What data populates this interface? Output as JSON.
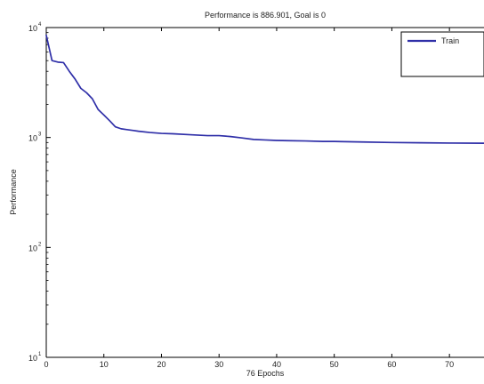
{
  "chart_data": {
    "type": "line",
    "title": "Performance is 886.901, Goal is 0",
    "xlabel": "76 Epochs",
    "ylabel": "Performance",
    "yscale": "log",
    "xlim": [
      0,
      76
    ],
    "ylim": [
      10,
      10000
    ],
    "x_ticks": [
      {
        "value": 0,
        "label": "0"
      },
      {
        "value": 10,
        "label": "10"
      },
      {
        "value": 20,
        "label": "20"
      },
      {
        "value": 30,
        "label": "30"
      },
      {
        "value": 40,
        "label": "40"
      },
      {
        "value": 50,
        "label": "50"
      },
      {
        "value": 60,
        "label": "60"
      },
      {
        "value": 70,
        "label": "70"
      }
    ],
    "y_ticks": [
      {
        "value": 10,
        "base": "10",
        "exponent": "1"
      },
      {
        "value": 100,
        "base": "10",
        "exponent": "2"
      },
      {
        "value": 1000,
        "base": "10",
        "exponent": "3"
      },
      {
        "value": 10000,
        "base": "10",
        "exponent": "4"
      }
    ],
    "grid": false,
    "legend_position": "top-right",
    "series": [
      {
        "name": "Train",
        "color": "#2f2fa8",
        "x": [
          0,
          1,
          2,
          3,
          4,
          5,
          6,
          7,
          8,
          9,
          10,
          11,
          12,
          13,
          14,
          15,
          16,
          18,
          20,
          22,
          25,
          28,
          30,
          32,
          34,
          36,
          38,
          40,
          42,
          45,
          48,
          50,
          55,
          60,
          65,
          70,
          76
        ],
        "y": [
          8500,
          5000,
          4850,
          4800,
          4000,
          3400,
          2800,
          2550,
          2250,
          1800,
          1600,
          1420,
          1250,
          1200,
          1180,
          1160,
          1140,
          1110,
          1090,
          1080,
          1060,
          1040,
          1040,
          1020,
          990,
          960,
          950,
          940,
          935,
          930,
          920,
          920,
          910,
          900,
          895,
          890,
          886.901
        ]
      }
    ]
  }
}
